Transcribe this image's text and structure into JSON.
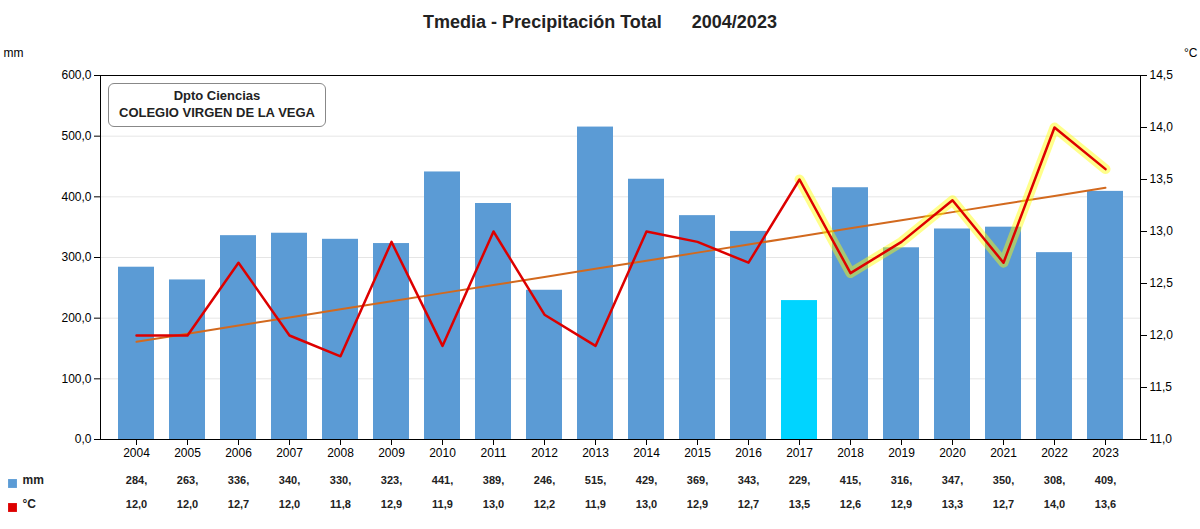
{
  "chart_data": {
    "type": "bar",
    "title": "Tmedia - Precipitación Total      2004/2023",
    "categories": [
      "2004",
      "2005",
      "2006",
      "2007",
      "2008",
      "2009",
      "2010",
      "2011",
      "2012",
      "2013",
      "2014",
      "2015",
      "2016",
      "2017",
      "2018",
      "2019",
      "2020",
      "2021",
      "2022",
      "2023"
    ],
    "ylabel": "mm",
    "y2label": "°C",
    "ylim": [
      0,
      600
    ],
    "yticks": [
      {
        "value": 0,
        "label": "0,0"
      },
      {
        "value": 100,
        "label": "100,0"
      },
      {
        "value": 200,
        "label": "200,0"
      },
      {
        "value": 300,
        "label": "300,0"
      },
      {
        "value": 400,
        "label": "400,0"
      },
      {
        "value": 500,
        "label": "500,0"
      },
      {
        "value": 600,
        "label": "600,0"
      }
    ],
    "y2lim": [
      11.0,
      14.5
    ],
    "y2ticks": [
      {
        "value": 11.0,
        "label": "11,0"
      },
      {
        "value": 11.5,
        "label": "11,5"
      },
      {
        "value": 12.0,
        "label": "12,0"
      },
      {
        "value": 12.5,
        "label": "12,5"
      },
      {
        "value": 13.0,
        "label": "13,0"
      },
      {
        "value": 13.5,
        "label": "13,5"
      },
      {
        "value": 14.0,
        "label": "14,0"
      },
      {
        "value": 14.5,
        "label": "14,5"
      }
    ],
    "grid": true,
    "annotations": [
      "Dpto Ciencias",
      "COLEGIO VIRGEN DE LA VEGA"
    ],
    "series": [
      {
        "name": "mm",
        "type": "bar",
        "color": "#5B9BD5",
        "colors": [
          "#5B9BD5",
          "#5B9BD5",
          "#5B9BD5",
          "#5B9BD5",
          "#5B9BD5",
          "#5B9BD5",
          "#5B9BD5",
          "#5B9BD5",
          "#5B9BD5",
          "#5B9BD5",
          "#5B9BD5",
          "#5B9BD5",
          "#5B9BD5",
          "#00D4FF",
          "#5B9BD5",
          "#5B9BD5",
          "#5B9BD5",
          "#5B9BD5",
          "#5B9BD5",
          "#5B9BD5"
        ],
        "values": [
          284,
          263,
          336,
          340,
          330,
          323,
          441,
          389,
          246,
          515,
          429,
          369,
          343,
          229,
          415,
          316,
          347,
          350,
          308,
          409
        ],
        "value_labels": [
          "284,",
          "263,",
          "336,",
          "340,",
          "330,",
          "323,",
          "441,",
          "389,",
          "246,",
          "515,",
          "429,",
          "369,",
          "343,",
          "229,",
          "415,",
          "316,",
          "347,",
          "350,",
          "308,",
          "409,"
        ]
      },
      {
        "type": "line",
        "axis": "y2",
        "color": "#D2691E",
        "line_style": "solid",
        "values": [
          11.94,
          12.0179,
          12.0958,
          12.1737,
          12.2516,
          12.3295,
          12.4074,
          12.4853,
          12.5632,
          12.6411,
          12.7189,
          12.7968,
          12.8747,
          12.9526,
          13.0305,
          13.1084,
          13.1863,
          13.2642,
          13.3421,
          13.42
        ]
      },
      {
        "type": "line",
        "axis": "y2",
        "color": "yellow",
        "line_style": "glow",
        "values": [
          null,
          null,
          null,
          null,
          null,
          null,
          null,
          null,
          null,
          null,
          null,
          null,
          null,
          13.5,
          12.6,
          12.9,
          13.3,
          12.7,
          14.0,
          13.6
        ]
      },
      {
        "name": "°C",
        "type": "line",
        "axis": "y2",
        "color": "#DD0000",
        "line_style": "solid",
        "values": [
          12.0,
          12.0,
          12.7,
          12.0,
          11.8,
          12.9,
          11.9,
          13.0,
          12.2,
          11.9,
          13.0,
          12.9,
          12.7,
          13.5,
          12.6,
          12.9,
          13.3,
          12.7,
          14.0,
          13.6
        ],
        "value_labels": [
          "12,0",
          "12,0",
          "12,7",
          "12,0",
          "11,8",
          "12,9",
          "11,9",
          "13,0",
          "12,2",
          "11,9",
          "13,0",
          "12,9",
          "12,7",
          "13,5",
          "12,6",
          "12,9",
          "13,3",
          "12,7",
          "14,0",
          "13,6"
        ]
      }
    ]
  }
}
